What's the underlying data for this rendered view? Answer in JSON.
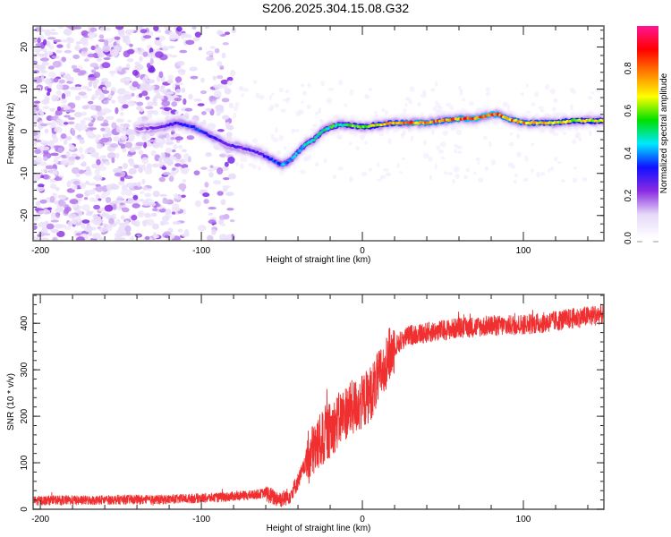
{
  "title": "S206.2025.304.15.08.G32",
  "chart_data": [
    {
      "type": "heatmap",
      "name": "spectrogram",
      "xlabel": "Height of straight line (km)",
      "ylabel": "Frequency (Hz)",
      "xlim": [
        -204.5,
        150
      ],
      "ylim": [
        -26,
        25
      ],
      "xticks": [
        -200,
        -100,
        0,
        100
      ],
      "yticks": [
        -20,
        -10,
        0,
        10,
        20
      ],
      "ridge": {
        "x": [
          -140,
          -125,
          -115,
          -105,
          -95,
          -85,
          -75,
          -65,
          -55,
          -50,
          -45,
          -40,
          -35,
          -30,
          -25,
          -20,
          -15,
          -10,
          0,
          10,
          20,
          30,
          40,
          50,
          60,
          70,
          80,
          85,
          90,
          95,
          100,
          110,
          120,
          130,
          140,
          150
        ],
        "freq": [
          0.5,
          1,
          2,
          1,
          -1,
          -3,
          -4,
          -5,
          -7,
          -8,
          -7,
          -5,
          -3,
          -2,
          0,
          1,
          1.5,
          1.5,
          1,
          1.5,
          2,
          2,
          2,
          2.5,
          3,
          3,
          4,
          4,
          3,
          2.5,
          2,
          2,
          2,
          2.5,
          2.5,
          2.5
        ],
        "amplitude": [
          0.2,
          0.3,
          0.35,
          0.4,
          0.35,
          0.3,
          0.3,
          0.3,
          0.4,
          0.45,
          0.45,
          0.5,
          0.55,
          0.55,
          0.55,
          0.6,
          0.6,
          0.6,
          0.7,
          0.75,
          0.8,
          0.9,
          0.9,
          0.85,
          0.9,
          0.95,
          0.95,
          0.9,
          0.9,
          0.85,
          0.85,
          0.8,
          0.8,
          0.75,
          0.75,
          0.75
        ]
      },
      "colorbar": {
        "label": "Normalized spectral amplitude",
        "range": [
          0,
          1
        ],
        "ticks": [
          "0.0",
          "0.2",
          "0.4",
          "0.6",
          "0.8"
        ],
        "colors": [
          "#ffffff",
          "#e6d8f8",
          "#8a2be2",
          "#1010ff",
          "#00e8ff",
          "#00e000",
          "#ffff00",
          "#ff8000",
          "#ff0000",
          "#ff1493"
        ]
      }
    },
    {
      "type": "line",
      "name": "snr",
      "xlabel": "Height of straight line (km)",
      "ylabel": "SNR (10 * v/v)",
      "xlim": [
        -204.5,
        150
      ],
      "ylim": [
        0,
        462
      ],
      "xticks": [
        -200,
        -100,
        0,
        100
      ],
      "yticks": [
        0,
        100,
        200,
        300,
        400
      ],
      "color": "#f03030",
      "series": [
        {
          "name": "SNR",
          "x": [
            -204,
            -190,
            -175,
            -160,
            -145,
            -130,
            -115,
            -100,
            -90,
            -80,
            -70,
            -60,
            -55,
            -50,
            -45,
            -40,
            -35,
            -30,
            -25,
            -20,
            -15,
            -10,
            -5,
            0,
            5,
            10,
            15,
            20,
            25,
            30,
            40,
            50,
            60,
            70,
            80,
            90,
            100,
            110,
            120,
            130,
            140,
            150
          ],
          "y": [
            18,
            20,
            19,
            20,
            21,
            20,
            22,
            24,
            25,
            28,
            30,
            35,
            25,
            22,
            30,
            60,
            100,
            130,
            150,
            170,
            190,
            210,
            220,
            230,
            250,
            280,
            320,
            350,
            365,
            375,
            380,
            385,
            390,
            392,
            395,
            395,
            398,
            400,
            405,
            410,
            415,
            420
          ]
        }
      ]
    }
  ]
}
